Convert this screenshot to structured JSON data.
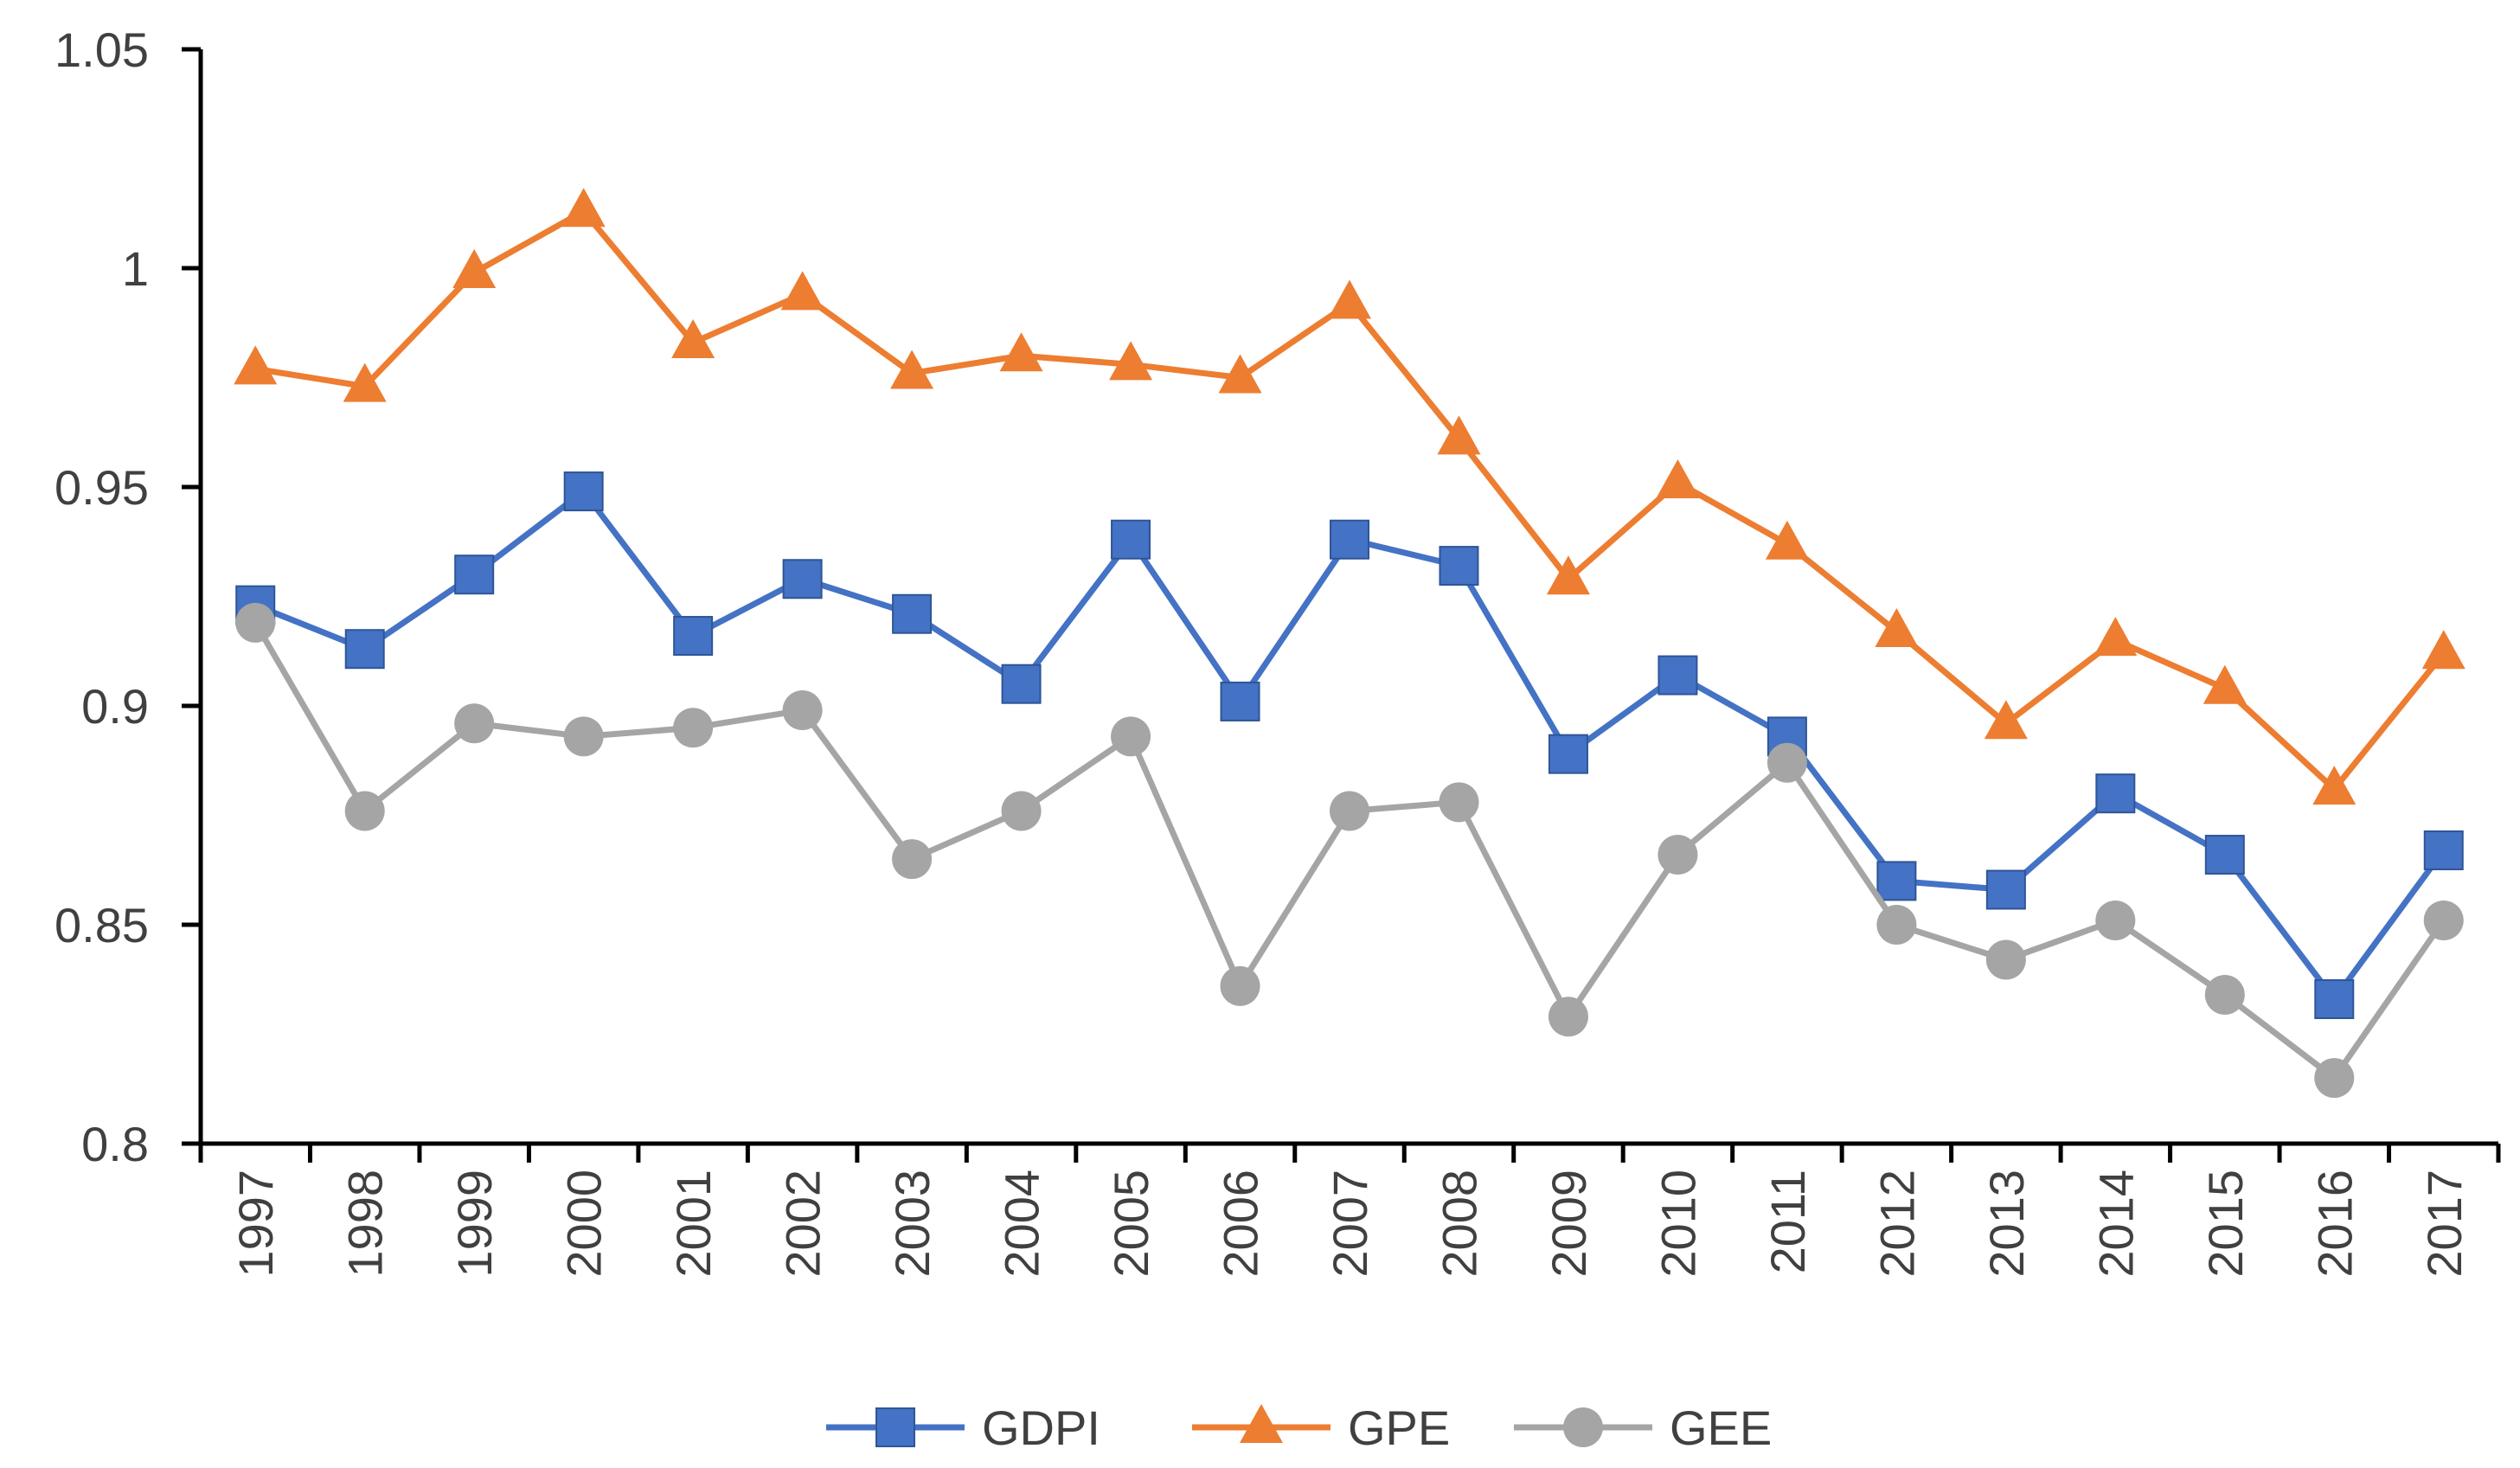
{
  "chart_data": {
    "type": "line",
    "title": "",
    "xlabel": "",
    "ylabel": "",
    "categories": [
      "1997",
      "1998",
      "1999",
      "2000",
      "2001",
      "2002",
      "2003",
      "2004",
      "2005",
      "2006",
      "2007",
      "2008",
      "2009",
      "2010",
      "2011",
      "2012",
      "2013",
      "2014",
      "2015",
      "2016",
      "2017"
    ],
    "ylim": [
      0.8,
      1.05
    ],
    "y_ticks": [
      0.8,
      0.85,
      0.9,
      0.95,
      1,
      1.05
    ],
    "y_tick_labels": [
      "0.8",
      "0.85",
      "0.9",
      "0.95",
      "1",
      "1.05"
    ],
    "grid": false,
    "legend_position": "bottom",
    "series": [
      {
        "name": "GDPI",
        "color": "#4472C4",
        "marker": "square",
        "values": [
          0.923,
          0.913,
          0.93,
          0.949,
          0.916,
          0.929,
          0.921,
          0.905,
          0.938,
          0.901,
          0.938,
          0.932,
          0.889,
          0.907,
          0.893,
          0.86,
          0.858,
          0.88,
          0.866,
          0.833,
          0.867
        ]
      },
      {
        "name": "GPE",
        "color": "#ED7D31",
        "marker": "triangle",
        "values": [
          0.977,
          0.973,
          0.999,
          1.013,
          0.983,
          0.994,
          0.976,
          0.98,
          0.978,
          0.975,
          0.992,
          0.961,
          0.929,
          0.951,
          0.937,
          0.917,
          0.896,
          0.915,
          0.904,
          0.881,
          0.912
        ]
      },
      {
        "name": "GEE",
        "color": "#A5A5A5",
        "marker": "circle",
        "values": [
          0.919,
          0.876,
          0.896,
          0.893,
          0.895,
          0.899,
          0.865,
          0.876,
          0.893,
          0.836,
          0.876,
          0.878,
          0.829,
          0.866,
          0.887,
          0.85,
          0.842,
          0.851,
          0.834,
          0.815,
          0.851
        ]
      }
    ]
  }
}
